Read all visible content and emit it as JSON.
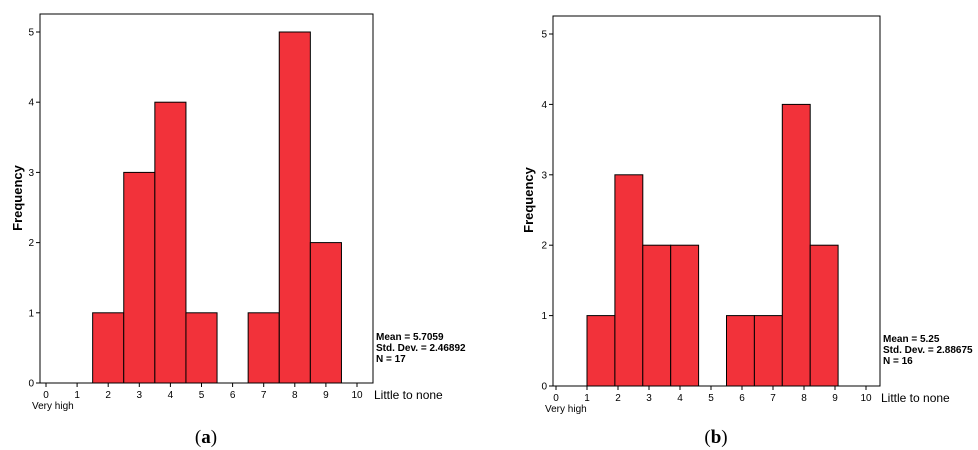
{
  "bar_color": "#f2323a",
  "chart_data": [
    {
      "type": "bar",
      "caption_letter": "a",
      "ylabel": "Frequency",
      "xlim": [
        0,
        10
      ],
      "ylim": [
        0,
        5
      ],
      "x_ticks": [
        "0",
        "1",
        "2",
        "3",
        "4",
        "5",
        "6",
        "7",
        "8",
        "9",
        "10"
      ],
      "y_ticks": [
        "0",
        "1",
        "2",
        "3",
        "4",
        "5"
      ],
      "low_end_label": "Very high",
      "high_end_label": "Little to none",
      "bins": [
        {
          "from": 1.5,
          "to": 2.5,
          "value": 1
        },
        {
          "from": 2.5,
          "to": 3.5,
          "value": 3
        },
        {
          "from": 3.5,
          "to": 4.5,
          "value": 4
        },
        {
          "from": 4.5,
          "to": 5.5,
          "value": 1
        },
        {
          "from": 6.5,
          "to": 7.5,
          "value": 1
        },
        {
          "from": 7.5,
          "to": 8.5,
          "value": 5
        },
        {
          "from": 8.5,
          "to": 9.5,
          "value": 2
        }
      ],
      "stats": [
        "Mean = 5.7059",
        "Std. Dev. = 2.46892",
        "N = 17"
      ]
    },
    {
      "type": "bar",
      "caption_letter": "b",
      "ylabel": "Frequency",
      "xlim": [
        0,
        10
      ],
      "ylim": [
        0,
        5
      ],
      "x_ticks": [
        "0",
        "1",
        "2",
        "3",
        "4",
        "5",
        "6",
        "7",
        "8",
        "9",
        "10"
      ],
      "y_ticks": [
        "0",
        "1",
        "2",
        "3",
        "4",
        "5"
      ],
      "low_end_label": "Very high",
      "high_end_label": "Little to none",
      "bins": [
        {
          "from": 1.0,
          "to": 1.9,
          "value": 1
        },
        {
          "from": 1.9,
          "to": 2.8,
          "value": 3
        },
        {
          "from": 2.8,
          "to": 3.7,
          "value": 2
        },
        {
          "from": 3.7,
          "to": 4.6,
          "value": 2
        },
        {
          "from": 5.5,
          "to": 6.4,
          "value": 1
        },
        {
          "from": 6.4,
          "to": 7.3,
          "value": 1
        },
        {
          "from": 7.3,
          "to": 8.2,
          "value": 4
        },
        {
          "from": 8.2,
          "to": 9.1,
          "value": 2
        }
      ],
      "stats": [
        "Mean = 5.25",
        "Std. Dev. = 2.88675",
        "N = 16"
      ]
    }
  ]
}
